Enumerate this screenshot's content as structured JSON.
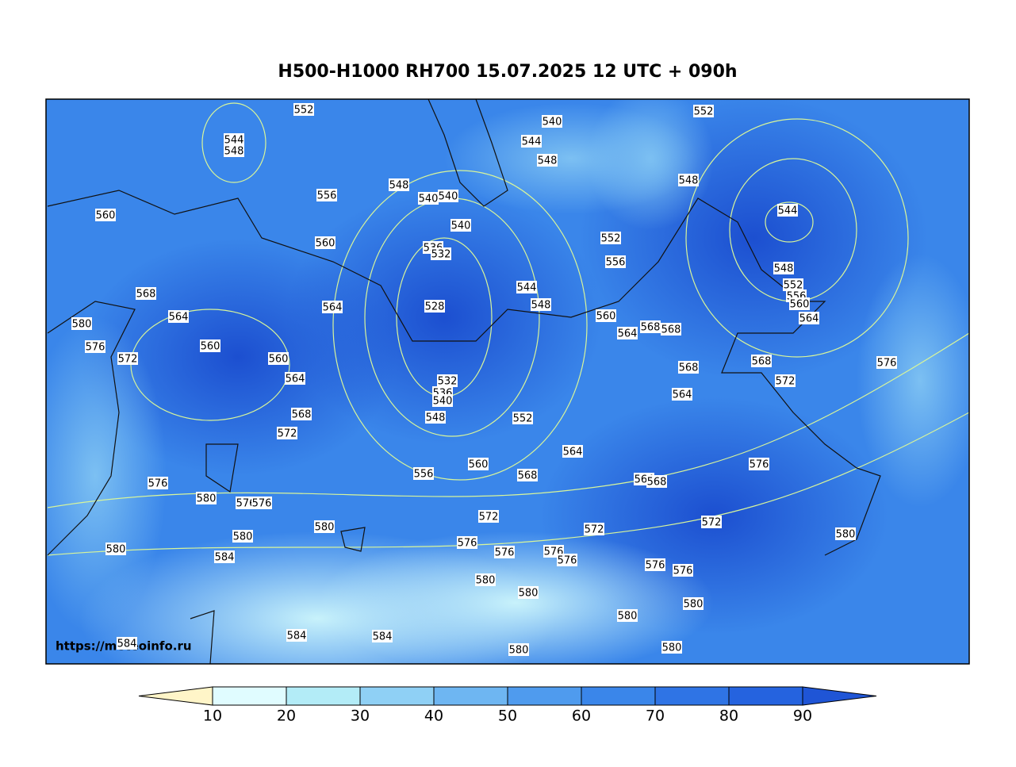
{
  "title": "H500-H1000 RH700 15.07.2025 12 UTC + 090h",
  "watermark": "https://meteoinfo.ru",
  "contour_labels": [
    552,
    544,
    548,
    556,
    560,
    560,
    548,
    540,
    544,
    548,
    540,
    540,
    540,
    536,
    532,
    528,
    544,
    548,
    552,
    548,
    544,
    552,
    556,
    548,
    552,
    556,
    560,
    564,
    560,
    564,
    568,
    568,
    568,
    564,
    568,
    572,
    576,
    568,
    564,
    564,
    580,
    576,
    572,
    560,
    560,
    564,
    532,
    536,
    540,
    548,
    552,
    568,
    572,
    564,
    560,
    556,
    568,
    564,
    568,
    576,
    576,
    580,
    576,
    576,
    580,
    572,
    572,
    572,
    580,
    580,
    584,
    576,
    576,
    576,
    576,
    576,
    576,
    580,
    580,
    580,
    580,
    580,
    580,
    580,
    584,
    584,
    584
  ],
  "colorbar": {
    "ticks": [
      10,
      20,
      30,
      40,
      50,
      60,
      70,
      80,
      90
    ],
    "under_color": "#fff5c8",
    "colors": [
      "#e0fcff",
      "#b3ecf7",
      "#8fd0f5",
      "#6eb6f2",
      "#4f9bee",
      "#3a86ea",
      "#2f74e5",
      "#2563df"
    ],
    "over_color": "#1f55d6"
  }
}
